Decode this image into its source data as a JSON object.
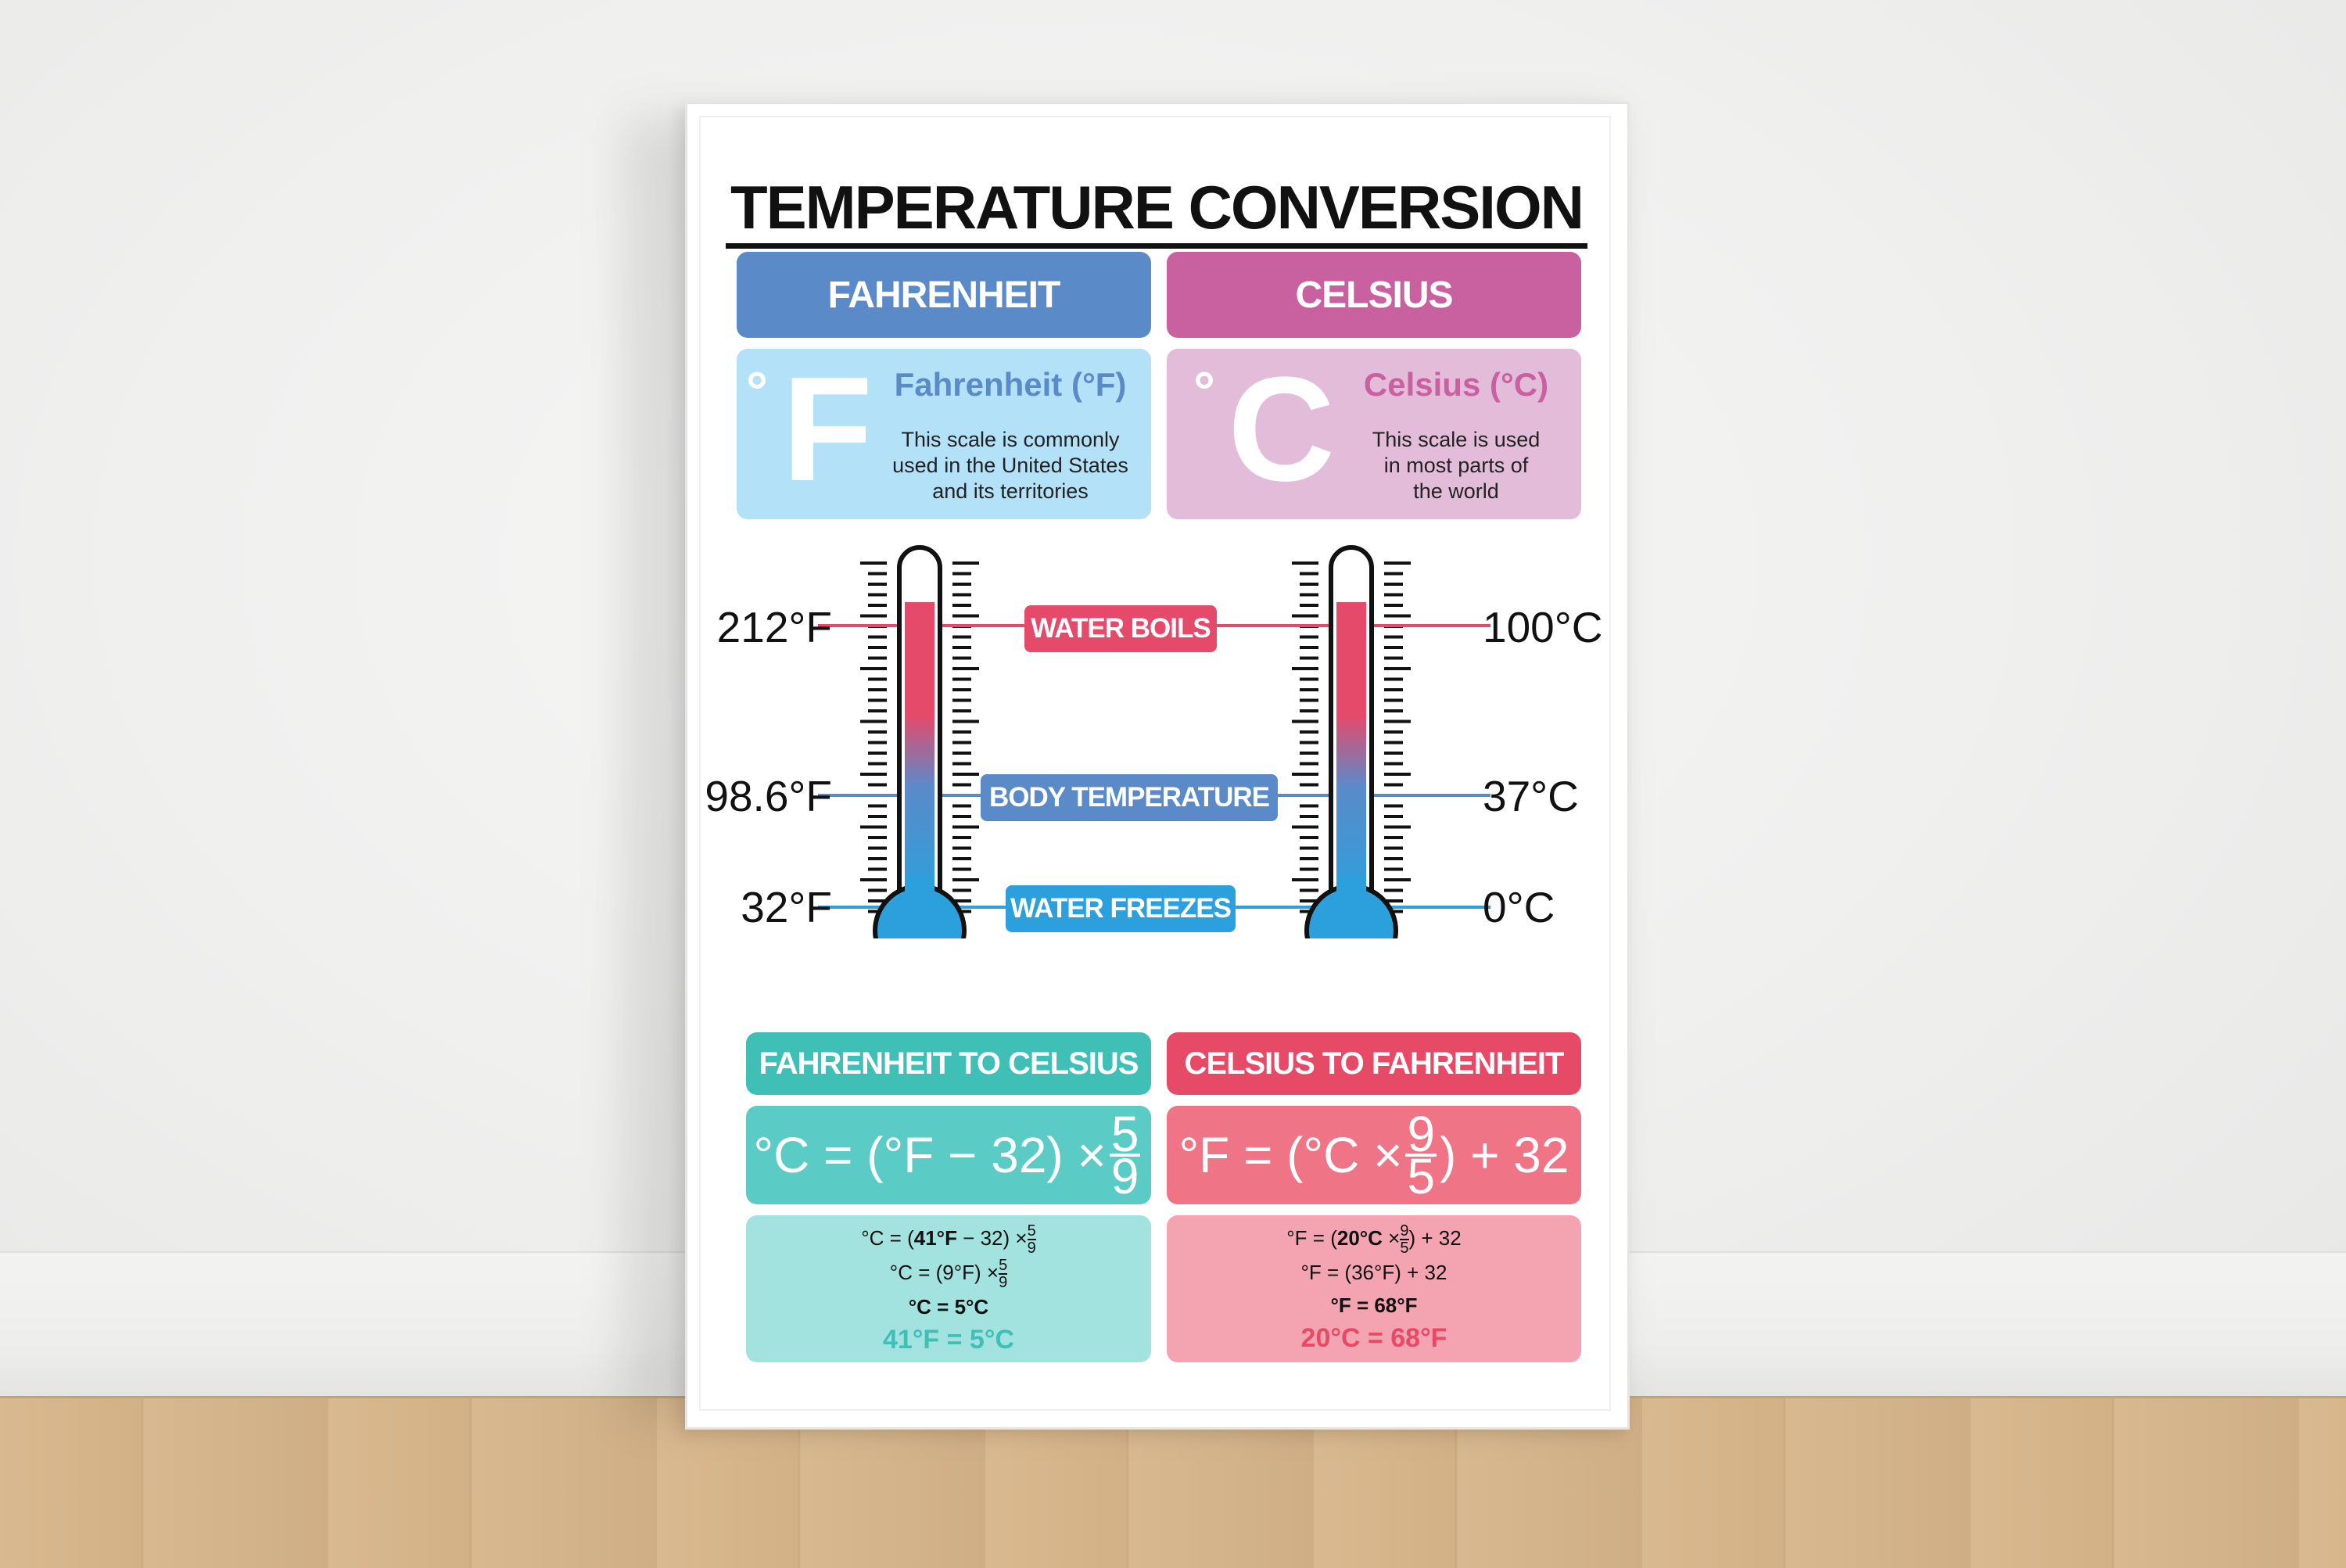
{
  "poster": {
    "title": "TEMPERATURE CONVERSION",
    "fahrenheit": {
      "header": "FAHRENHEIT",
      "symbol_degree": "°",
      "symbol_letter": "F",
      "name": "Fahrenheit (°F)",
      "desc_1": "This scale is commonly",
      "desc_2": "used in the United States",
      "desc_3": "and its territories"
    },
    "celsius": {
      "header": "CELSIUS",
      "symbol_degree": "°",
      "symbol_letter": "C",
      "name": "Celsius (°C)",
      "desc_1": "This scale is used",
      "desc_2": "in most parts of",
      "desc_3": "the world"
    },
    "markers": {
      "boil_label": "WATER BOILS",
      "body_label": "BODY TEMPERATURE",
      "freeze_label": "WATER FREEZES",
      "f_boil": "212°F",
      "f_body": "98.6°F",
      "f_freeze": "32°F",
      "c_boil": "100°C",
      "c_body": "37°C",
      "c_freeze": "0°C"
    },
    "f_to_c": {
      "header": "FAHRENHEIT TO CELSIUS",
      "formula_left": "°C = (°F − 32) ×",
      "formula_num": "5",
      "formula_den": "9",
      "step1_prefix": "°C = (",
      "step1_bold": "41°F",
      "step1_suffix": " − 32) ×",
      "step1_num": "5",
      "step1_den": "9",
      "step2_prefix": "°C = (9°F) ×",
      "step2_num": "5",
      "step2_den": "9",
      "step3": "°C = 5°C",
      "result": "41°F = 5°C"
    },
    "c_to_f": {
      "header": "CELSIUS TO FAHRENHEIT",
      "formula_left": "°F = (°C ×",
      "formula_num": "9",
      "formula_den": "5",
      "formula_right": ") + 32",
      "step1_prefix": "°F = (",
      "step1_bold": "20°C",
      "step1_mid": " ×",
      "step1_num": "9",
      "step1_den": "5",
      "step1_suffix": ") + 32",
      "step2": "°F = (36°F) + 32",
      "step3": "°F = 68°F",
      "result": "20°C = 68°F"
    }
  },
  "colors": {
    "fahrenheit_header": "#5b8ac9",
    "fahrenheit_info": "#b3e1f7",
    "celsius_header": "#c9609f",
    "celsius_info": "#e2bcd8",
    "boil": "#e54a6a",
    "body": "#5b8ac9",
    "freeze": "#2ba0dc",
    "f_to_c_header": "#3fbfb6",
    "f_to_c_formula": "#5bcbc5",
    "f_to_c_example": "#a2e2df",
    "c_to_f_header": "#e74a66",
    "c_to_f_formula": "#ef7485",
    "c_to_f_example": "#f4a4b1"
  }
}
